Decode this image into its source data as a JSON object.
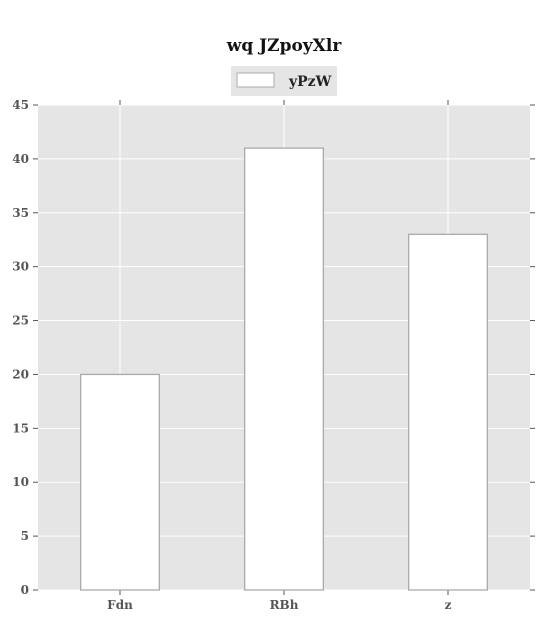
{
  "chart_data": {
    "type": "bar",
    "title": "wq JZpoyXlr",
    "xlabel": "",
    "ylabel": "",
    "categories": [
      "Fdn",
      "RBh",
      "z"
    ],
    "series": [
      {
        "name": "yPzW",
        "values": [
          20,
          41,
          33
        ]
      }
    ],
    "ylim": [
      0,
      45
    ],
    "yticks": [
      0,
      5,
      10,
      15,
      20,
      25,
      30,
      35,
      40,
      45
    ],
    "grid": true,
    "legend": "top-center",
    "colors": {
      "plot_background": "#e5e5e5",
      "grid": "#ffffff",
      "bar_fill": "#ffffff",
      "bar_edge": "#aaaaaa",
      "legend_background": "#e5e5e5"
    }
  }
}
